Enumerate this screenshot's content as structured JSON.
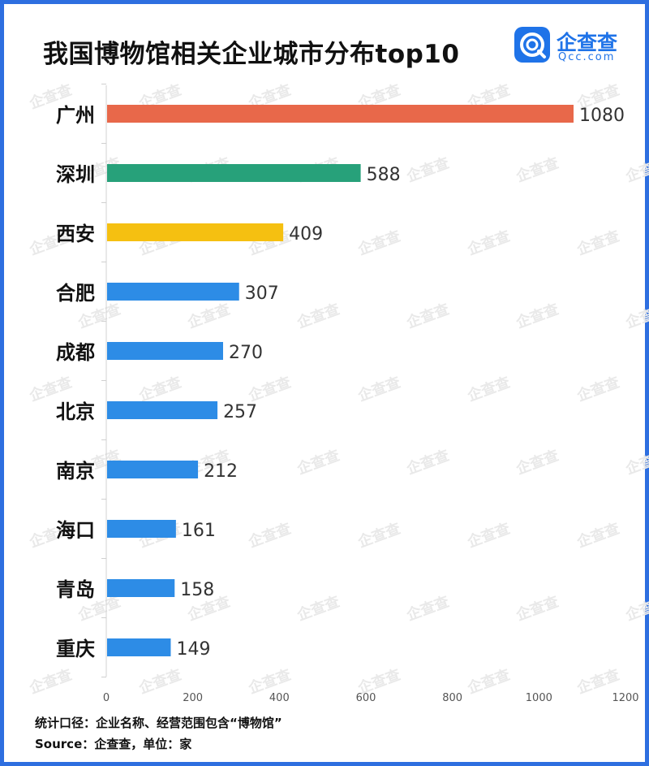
{
  "title": "我国博物馆相关企业城市分布top10",
  "logo": {
    "name_cn": "企查查",
    "name_en": "Qcc.com",
    "color": "#1f73e8"
  },
  "watermark": "企查查",
  "footer": {
    "line1": "统计口径：企业名称、经营范围包含“博物馆”",
    "line2": "Source：企查查，单位：家"
  },
  "colors": {
    "frame": "#2e6fe0",
    "orange": "#e8684a",
    "green": "#27a17a",
    "yellow": "#f5c011",
    "blue": "#2d8ce6"
  },
  "chart_data": {
    "type": "bar",
    "orientation": "horizontal",
    "categories": [
      "广州",
      "深圳",
      "西安",
      "合肥",
      "成都",
      "北京",
      "南京",
      "海口",
      "青岛",
      "重庆"
    ],
    "values": [
      1080,
      588,
      409,
      307,
      270,
      257,
      212,
      161,
      158,
      149
    ],
    "bar_colors": [
      "#e8684a",
      "#27a17a",
      "#f5c011",
      "#2d8ce6",
      "#2d8ce6",
      "#2d8ce6",
      "#2d8ce6",
      "#2d8ce6",
      "#2d8ce6",
      "#2d8ce6"
    ],
    "xlim": [
      0,
      1200
    ],
    "xticks": [
      0,
      200,
      400,
      600,
      800,
      1000,
      1200
    ],
    "grid": false,
    "data_labels": true
  }
}
